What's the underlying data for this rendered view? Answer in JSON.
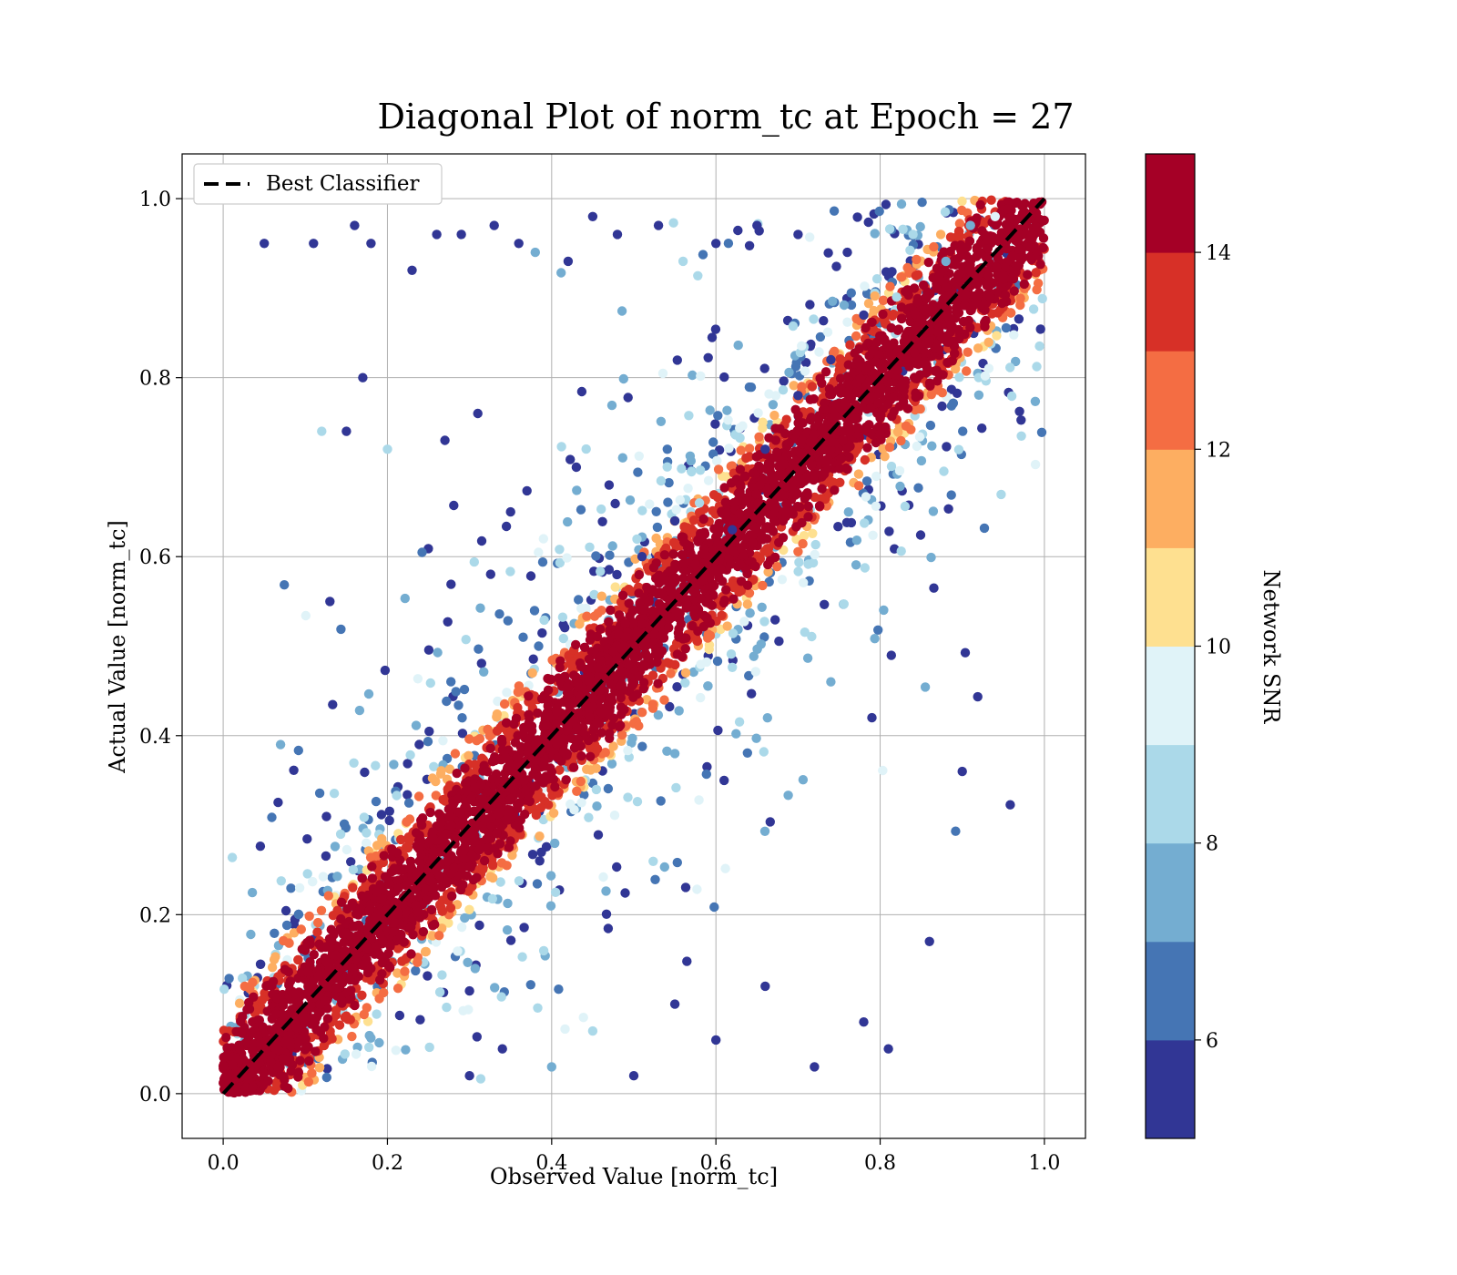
{
  "chart_data": {
    "type": "scatter",
    "title": "Diagonal Plot of norm_tc at Epoch = 27",
    "xlabel": "Observed Value [norm_tc]",
    "ylabel": "Actual Value [norm_tc]",
    "xlim": [
      -0.05,
      1.05
    ],
    "ylim": [
      -0.05,
      1.05
    ],
    "xticks": [
      "0.0",
      "0.2",
      "0.4",
      "0.6",
      "0.8",
      "1.0"
    ],
    "yticks": [
      "0.0",
      "0.2",
      "0.4",
      "0.6",
      "0.8",
      "1.0"
    ],
    "grid": true,
    "legend": {
      "placement": "upper-left",
      "entries": [
        "Best Classifier"
      ]
    },
    "reference_line": {
      "name": "Best Classifier",
      "style": "dashed",
      "color": "#000000",
      "x": [
        0,
        1
      ],
      "y": [
        0,
        1
      ]
    },
    "colorbar": {
      "label": "Network SNR",
      "range": [
        5,
        15
      ],
      "ticks": [
        "6",
        "8",
        "10",
        "12",
        "14"
      ],
      "colors": [
        "#313695",
        "#4575b4",
        "#74add1",
        "#abd9e9",
        "#e0f3f8",
        "#fee090",
        "#fdae61",
        "#f46d43",
        "#d73027",
        "#a50026"
      ]
    },
    "series": [
      {
        "points_approx": "dense band along diagonal with scattered outliers",
        "x": [
          0.05,
          0.11,
          0.16,
          0.18,
          0.23,
          0.26,
          0.29,
          0.33,
          0.36,
          0.38,
          0.42,
          0.45,
          0.48,
          0.53,
          0.56,
          0.6,
          0.65,
          0.7,
          0.76,
          0.84,
          0.88,
          0.91,
          0.94,
          0.12,
          0.15,
          0.2,
          0.27,
          0.31,
          0.35,
          0.39,
          0.43,
          0.47,
          0.51,
          0.55,
          0.58,
          0.62,
          0.66,
          0.7,
          0.74,
          0.78,
          0.82,
          0.3,
          0.34,
          0.4,
          0.45,
          0.5,
          0.55,
          0.6,
          0.66,
          0.72,
          0.78,
          0.81,
          0.86,
          0.61,
          0.55,
          0.9,
          0.79,
          0.17,
          0.13
        ],
        "y": [
          0.95,
          0.95,
          0.97,
          0.95,
          0.92,
          0.96,
          0.96,
          0.97,
          0.95,
          0.94,
          0.93,
          0.98,
          0.96,
          0.97,
          0.93,
          0.95,
          0.97,
          0.96,
          0.94,
          0.96,
          0.93,
          0.97,
          0.98,
          0.74,
          0.74,
          0.72,
          0.73,
          0.76,
          0.65,
          0.62,
          0.7,
          0.68,
          0.6,
          0.64,
          0.66,
          0.63,
          0.72,
          0.78,
          0.82,
          0.87,
          0.89,
          0.02,
          0.05,
          0.03,
          0.07,
          0.02,
          0.1,
          0.06,
          0.12,
          0.03,
          0.08,
          0.05,
          0.17,
          0.35,
          0.38,
          0.36,
          0.42,
          0.8,
          0.55
        ],
        "snr": [
          5,
          5,
          5,
          5,
          5,
          5,
          5,
          5,
          5,
          7,
          5,
          5,
          5,
          5,
          8,
          5,
          5,
          5,
          5,
          8,
          7,
          7,
          9,
          8,
          5,
          8,
          5,
          5,
          5,
          9,
          5,
          5,
          5,
          5,
          8,
          5,
          5,
          5,
          5,
          5,
          8,
          5,
          5,
          7,
          8,
          5,
          5,
          5,
          5,
          5,
          5,
          5,
          5,
          5,
          7,
          5,
          5,
          5,
          5
        ]
      }
    ]
  }
}
